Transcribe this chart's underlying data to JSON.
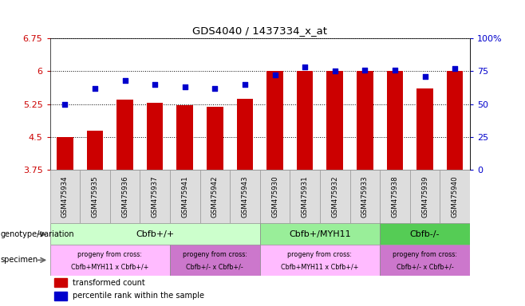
{
  "title": "GDS4040 / 1437334_x_at",
  "samples": [
    "GSM475934",
    "GSM475935",
    "GSM475936",
    "GSM475937",
    "GSM475941",
    "GSM475942",
    "GSM475943",
    "GSM475930",
    "GSM475931",
    "GSM475932",
    "GSM475933",
    "GSM475938",
    "GSM475939",
    "GSM475940"
  ],
  "bar_values": [
    4.5,
    4.65,
    5.35,
    5.27,
    5.22,
    5.18,
    5.37,
    6.0,
    6.0,
    6.0,
    6.0,
    6.0,
    5.6,
    6.0
  ],
  "dot_values": [
    50,
    62,
    68,
    65,
    63,
    62,
    65,
    72,
    78,
    75,
    76,
    76,
    71,
    77
  ],
  "ylim": [
    3.75,
    6.75
  ],
  "y2lim": [
    0,
    100
  ],
  "yticks": [
    3.75,
    4.5,
    5.25,
    6.0,
    6.75
  ],
  "ytick_labels": [
    "3.75",
    "4.5",
    "5.25",
    "6",
    "6.75"
  ],
  "y2ticks": [
    0,
    25,
    50,
    75,
    100
  ],
  "y2tick_labels": [
    "0",
    "25",
    "50",
    "75",
    "100%"
  ],
  "bar_color": "#cc0000",
  "dot_color": "#0000cc",
  "genotype_groups": [
    {
      "label": "Cbfb+/+",
      "start": 0,
      "end": 7,
      "color": "#ccffcc"
    },
    {
      "label": "Cbfb+/MYH11",
      "start": 7,
      "end": 11,
      "color": "#99ee99"
    },
    {
      "label": "Cbfb-/-",
      "start": 11,
      "end": 14,
      "color": "#55cc55"
    }
  ],
  "specimen_groups": [
    {
      "label": "progeny from cross:\nCbfb+MYH11 x Cbfb+/+",
      "start": 0,
      "end": 4,
      "color": "#ffaaff"
    },
    {
      "label": "progeny from cross:\nCbfb+/- x Cbfb+/-",
      "start": 4,
      "end": 7,
      "color": "#ee88ee"
    },
    {
      "label": "progeny from cross:\nCbfb+MYH11 x Cbfb+/+",
      "start": 7,
      "end": 11,
      "color": "#ffaaff"
    },
    {
      "label": "progeny from cross:\nCbfb+/- x Cbfb+/-",
      "start": 11,
      "end": 14,
      "color": "#ee88ee"
    }
  ]
}
